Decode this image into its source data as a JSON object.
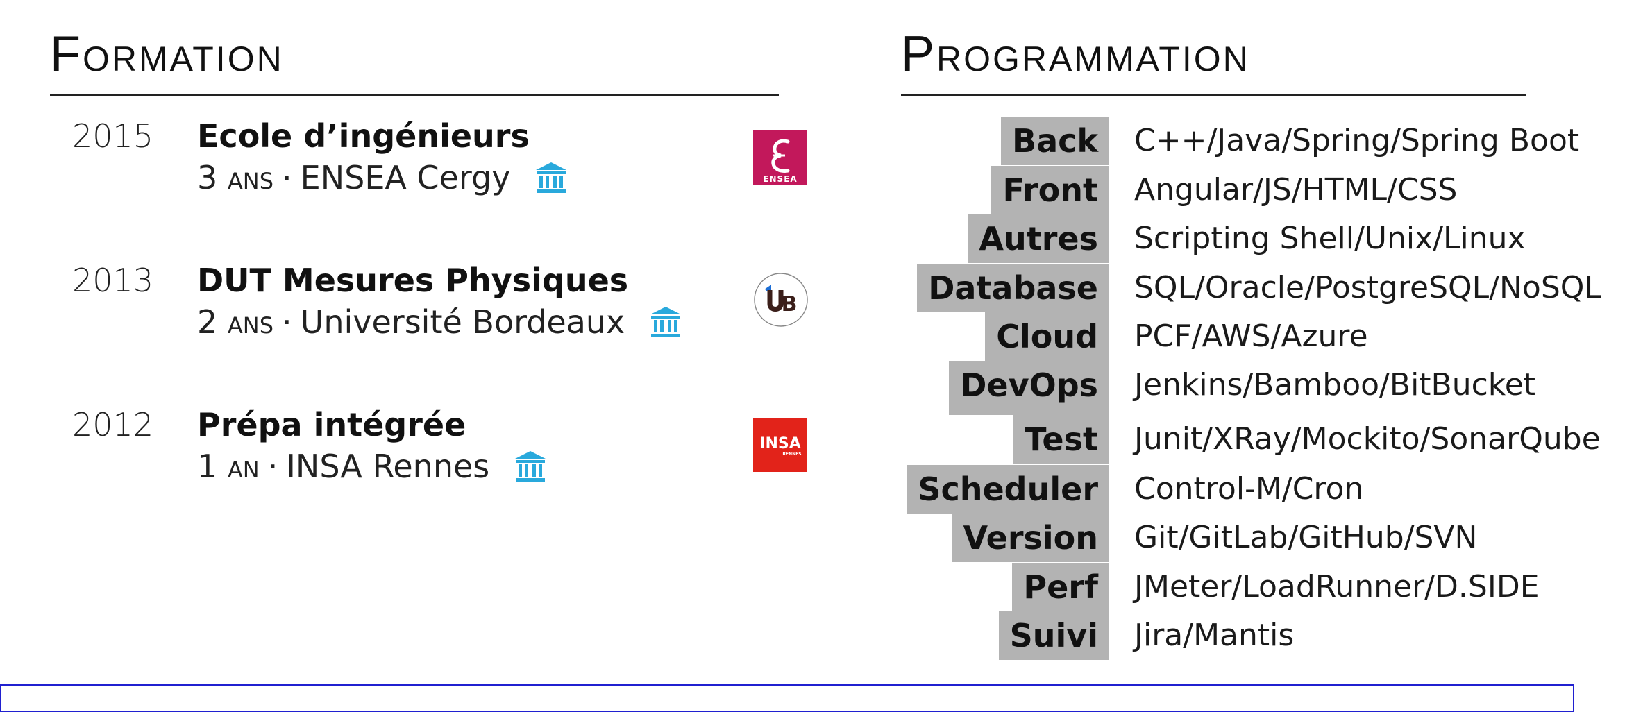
{
  "formation": {
    "title": "Formation",
    "items": [
      {
        "year": "2015",
        "title": "Ecole d’ingénieurs",
        "duration": "3 ans",
        "separator": "·",
        "school": "ENSEA Cergy",
        "logo": "ensea-logo",
        "logo_text": "ENSEA",
        "icon": "institution-icon"
      },
      {
        "year": "2013",
        "title": "DUT Mesures Physiques",
        "duration": "2 ans",
        "separator": "·",
        "school": "Université Bordeaux",
        "logo": "ub-logo",
        "logo_text": "UB",
        "icon": "institution-icon"
      },
      {
        "year": "2012",
        "title": "Prépa intégrée",
        "duration": "1 an",
        "separator": "·",
        "school": "INSA Rennes",
        "logo": "insa-logo",
        "logo_text": "INSA",
        "logo_subtext": "RENNES",
        "icon": "institution-icon"
      }
    ]
  },
  "programmation": {
    "title": "Programmation",
    "skills": [
      {
        "category": "Back",
        "value": "C++/Java/Spring/Spring Boot"
      },
      {
        "category": "Front",
        "value": "Angular/JS/HTML/CSS"
      },
      {
        "category": "Autres",
        "value": "Scripting Shell/Unix/Linux"
      },
      {
        "category": "Database",
        "value": "SQL/Oracle/PostgreSQL/NoSQL"
      },
      {
        "category": "Cloud",
        "value": "PCF/AWS/Azure"
      },
      {
        "category": "DevOps",
        "value": "Jenkins/Bamboo/BitBucket"
      },
      {
        "category": "Test",
        "value": "Junit/XRay/Mockito/SonarQube"
      },
      {
        "category": "Scheduler",
        "value": "Control-M/Cron"
      },
      {
        "category": "Version",
        "value": "Git/GitLab/GitHub/SVN"
      },
      {
        "category": "Perf",
        "value": "JMeter/LoadRunner/D.SIDE"
      },
      {
        "category": "Suivi",
        "value": "Jira/Mantis"
      }
    ]
  },
  "colors": {
    "accent_icon": "#29a9dc",
    "category_bg": "#b3b3b3",
    "frame_border": "#2020d0",
    "ensea_logo": "#c2185b",
    "insa_logo": "#e2231a",
    "ub_logo_dark": "#3b1f1a",
    "ub_logo_blue": "#1d6fd6"
  }
}
